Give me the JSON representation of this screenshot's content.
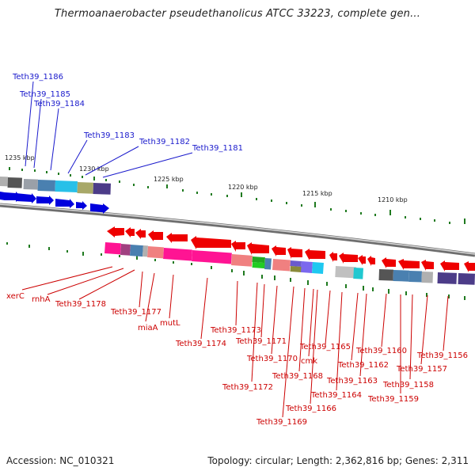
{
  "title": "Thermoanaerobacter pseudethanolicus ATCC 33223, complete gen...",
  "footer": {
    "accession": "Accession: NC_010321",
    "topology": "Topology: circular; Length: 2,362,816 bp; Genes: 2,311"
  },
  "ticks": [
    "1235 kbp",
    "1230 kbp",
    "1225 kbp",
    "1220 kbp",
    "1215 kbp",
    "1210 kbp"
  ],
  "upper_labels": [
    "Teth39_1186",
    "Teth39_1185",
    "Teth39_1184",
    "Teth39_1183",
    "Teth39_1182",
    "Teth39_1181"
  ],
  "lower_labels": [
    "xerC",
    "rnhA",
    "Teth39_1178",
    "Teth39_1177",
    "miaA",
    "mutL",
    "Teth39_1174",
    "Teth39_1173",
    "Teth39_1172",
    "Teth39_1171",
    "Teth39_1170",
    "Teth39_1169",
    "Teth39_1168",
    "cmk",
    "Teth39_1166",
    "Teth39_1165",
    "Teth39_1164",
    "Teth39_1163",
    "Teth39_1162",
    "Teth39_1160",
    "Teth39_1159",
    "Teth39_1158",
    "Teth39_1157",
    "Teth39_1156"
  ],
  "colors": {
    "forward_gene": "#0000dd",
    "reverse_gene": "#ee0000",
    "tick": "#1f7a1f",
    "upper_label": "#1a1acc",
    "lower_label": "#cc0000"
  }
}
